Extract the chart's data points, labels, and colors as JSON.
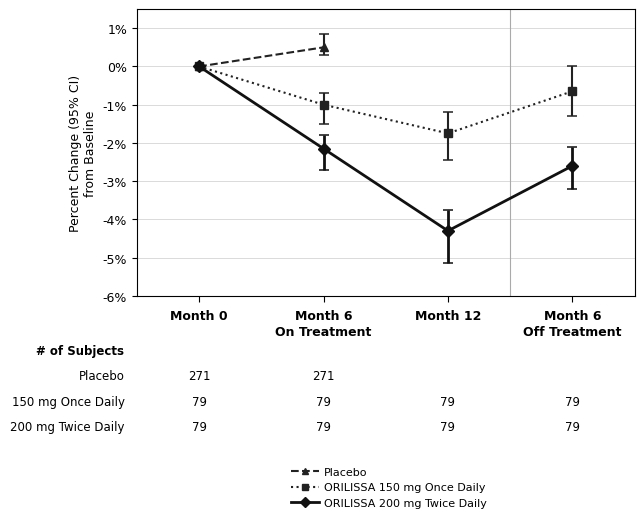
{
  "x_positions": [
    0,
    1,
    2,
    3
  ],
  "x_labels_top": [
    "Month 0",
    "Month 6",
    "Month 12",
    "Month 6"
  ],
  "x_labels_bottom": [
    "",
    "On Treatment",
    "",
    "Off Treatment"
  ],
  "ylim_data": [
    -6.0,
    1.5
  ],
  "yticks": [
    1,
    0,
    -1,
    -2,
    -3,
    -4,
    -5,
    -6
  ],
  "ytick_labels": [
    "1%",
    "0%",
    "-1%",
    "-2%",
    "-3%",
    "-4%",
    "-5%",
    "-6%"
  ],
  "ylabel": "Percent Change (95% CI)\nfrom Baseline",
  "placebo": {
    "y": [
      0.0,
      0.5
    ],
    "x": [
      0,
      1
    ],
    "yerr_lo": [
      0.0,
      0.2
    ],
    "yerr_hi": [
      0.0,
      0.35
    ],
    "color": "#222222",
    "linestyle": "--",
    "marker": "^",
    "label": "Placebo",
    "markersize": 6,
    "linewidth": 1.5
  },
  "orilissa_150": {
    "y": [
      0.0,
      -1.0,
      -1.75,
      -0.65
    ],
    "x": [
      0,
      1,
      2,
      3
    ],
    "yerr_lo": [
      0.0,
      0.5,
      0.7,
      0.65
    ],
    "yerr_hi": [
      0.0,
      0.3,
      0.55,
      0.65
    ],
    "color": "#222222",
    "linestyle": ":",
    "marker": "s",
    "label": "ORILISSA 150 mg Once Daily",
    "markersize": 6,
    "linewidth": 1.5
  },
  "orilissa_200": {
    "y": [
      0.0,
      -2.15,
      -4.3,
      -2.6
    ],
    "x": [
      0,
      1,
      2,
      3
    ],
    "yerr_lo": [
      0.0,
      0.55,
      0.85,
      0.6
    ],
    "yerr_hi": [
      0.0,
      0.35,
      0.55,
      0.5
    ],
    "color": "#111111",
    "linestyle": "-",
    "marker": "D",
    "label": "ORILISSA 200 mg Twice Daily",
    "markersize": 6,
    "linewidth": 2.0
  },
  "n_table_header": "# of Subjects",
  "n_table_rows": [
    {
      "label": "Placebo",
      "values": [
        "271",
        "271",
        "",
        ""
      ]
    },
    {
      "label": "150 mg Once Daily",
      "values": [
        "79",
        "79",
        "79",
        "79"
      ]
    },
    {
      "label": "200 mg Twice Daily",
      "values": [
        "79",
        "79",
        "79",
        "79"
      ]
    }
  ],
  "vline_x": 2.5,
  "background_color": "#ffffff",
  "fontsize_axis": 9,
  "fontsize_table": 8.5
}
